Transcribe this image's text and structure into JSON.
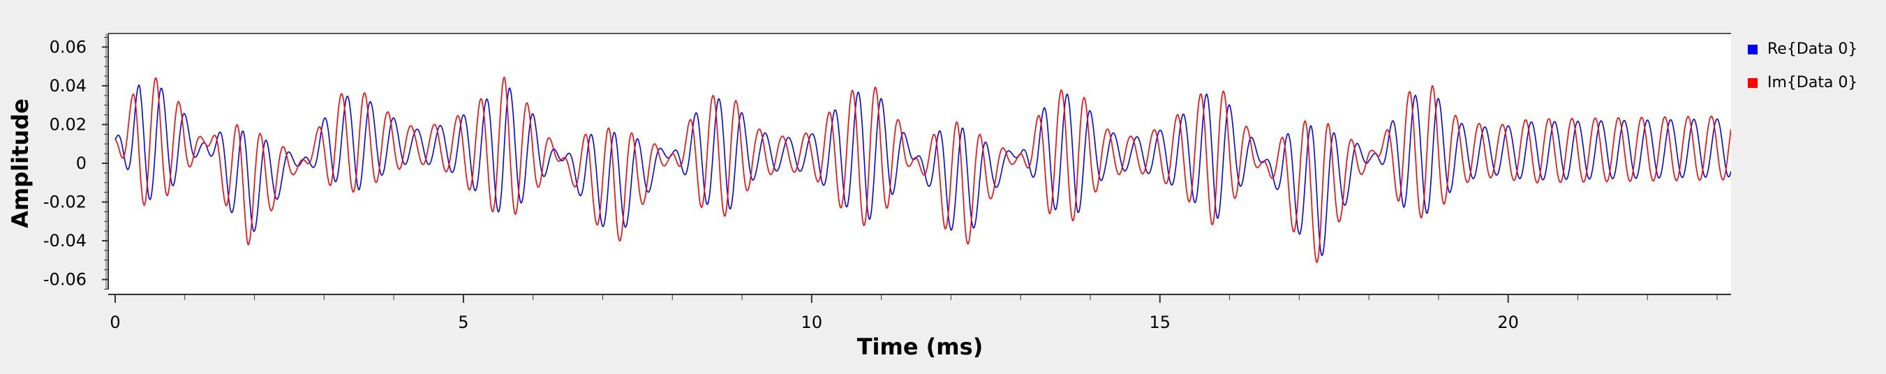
{
  "chart_data": {
    "type": "line",
    "xlabel": "Time (ms)",
    "ylabel": "Amplitude",
    "xlim": [
      -0.1,
      23.2
    ],
    "ylim": [
      -0.067,
      0.067
    ],
    "x_ticks": [
      0,
      5,
      10,
      15,
      20
    ],
    "x_tick_labels": [
      "0",
      "5",
      "10",
      "15",
      "20"
    ],
    "y_ticks": [
      0.06,
      0.04,
      0.02,
      0,
      -0.02,
      -0.04,
      -0.06
    ],
    "y_tick_labels": [
      "0.06",
      "0.04",
      "0.02",
      "0",
      "-0.02",
      "-0.04",
      "-0.06"
    ],
    "grid": false,
    "legend_position": "right",
    "carrier_freq_khz": 3.0,
    "series": [
      {
        "name": "Re{Data 0}",
        "color": "#0000ff",
        "envelope_points": [
          [
            0,
            0.0
          ],
          [
            0.35,
            0.03
          ],
          [
            0.6,
            0.03
          ],
          [
            0.9,
            0.02
          ],
          [
            1.3,
            0.0
          ],
          [
            1.6,
            -0.02
          ],
          [
            1.9,
            -0.028
          ],
          [
            2.3,
            -0.015
          ],
          [
            2.7,
            0.0
          ],
          [
            3.1,
            0.02
          ],
          [
            3.5,
            0.025
          ],
          [
            3.9,
            0.015
          ],
          [
            4.3,
            0.008
          ],
          [
            4.8,
            0.012
          ],
          [
            5.3,
            0.025
          ],
          [
            5.6,
            0.035
          ],
          [
            6.0,
            0.02
          ],
          [
            6.4,
            0.0
          ],
          [
            6.8,
            -0.02
          ],
          [
            7.2,
            -0.028
          ],
          [
            7.6,
            -0.015
          ],
          [
            8.0,
            0.0
          ],
          [
            8.4,
            0.025
          ],
          [
            8.8,
            0.03
          ],
          [
            9.2,
            0.012
          ],
          [
            9.6,
            0.008
          ],
          [
            10.0,
            0.01
          ],
          [
            10.4,
            0.025
          ],
          [
            10.8,
            0.035
          ],
          [
            11.1,
            0.025
          ],
          [
            11.5,
            0.0
          ],
          [
            11.9,
            -0.025
          ],
          [
            12.2,
            -0.03
          ],
          [
            12.6,
            -0.012
          ],
          [
            13.0,
            0.0
          ],
          [
            13.4,
            0.028
          ],
          [
            13.8,
            0.032
          ],
          [
            14.2,
            0.012
          ],
          [
            14.6,
            0.008
          ],
          [
            15.0,
            0.012
          ],
          [
            15.4,
            0.022
          ],
          [
            15.8,
            0.035
          ],
          [
            16.1,
            0.02
          ],
          [
            16.5,
            0.0
          ],
          [
            16.9,
            -0.025
          ],
          [
            17.3,
            -0.035
          ],
          [
            17.7,
            -0.015
          ],
          [
            18.1,
            0.0
          ],
          [
            18.5,
            0.028
          ],
          [
            18.9,
            0.032
          ],
          [
            19.3,
            0.015
          ],
          [
            19.8,
            0.012
          ],
          [
            20.3,
            0.015
          ],
          [
            21.0,
            0.015
          ],
          [
            22.0,
            0.015
          ],
          [
            23.2,
            0.015
          ]
        ],
        "offset_points": [
          [
            0,
            0.012
          ],
          [
            1.3,
            0.01
          ],
          [
            1.9,
            -0.012
          ],
          [
            2.6,
            0.0
          ],
          [
            3.2,
            0.012
          ],
          [
            6.2,
            0.005
          ],
          [
            7.2,
            -0.012
          ],
          [
            8.0,
            0.005
          ],
          [
            11.4,
            0.005
          ],
          [
            12.2,
            -0.012
          ],
          [
            13.0,
            0.005
          ],
          [
            16.3,
            0.005
          ],
          [
            17.3,
            -0.015
          ],
          [
            18.0,
            0.005
          ],
          [
            23.2,
            0.008
          ]
        ]
      },
      {
        "name": "Im{Data 0}",
        "color": "#ff0000",
        "envelope_points": [
          [
            0,
            0.0
          ],
          [
            0.35,
            0.03
          ],
          [
            0.6,
            0.03
          ],
          [
            0.9,
            0.02
          ],
          [
            1.3,
            0.0
          ],
          [
            1.6,
            -0.02
          ],
          [
            1.9,
            -0.028
          ],
          [
            2.3,
            -0.015
          ],
          [
            2.7,
            0.0
          ],
          [
            3.1,
            0.02
          ],
          [
            3.5,
            0.025
          ],
          [
            3.9,
            0.015
          ],
          [
            4.3,
            0.008
          ],
          [
            4.8,
            0.012
          ],
          [
            5.3,
            0.025
          ],
          [
            5.6,
            0.035
          ],
          [
            6.0,
            0.02
          ],
          [
            6.4,
            0.0
          ],
          [
            6.8,
            -0.02
          ],
          [
            7.2,
            -0.028
          ],
          [
            7.6,
            -0.015
          ],
          [
            8.0,
            0.0
          ],
          [
            8.4,
            0.025
          ],
          [
            8.8,
            0.03
          ],
          [
            9.2,
            0.012
          ],
          [
            9.6,
            0.008
          ],
          [
            10.0,
            0.01
          ],
          [
            10.4,
            0.025
          ],
          [
            10.8,
            0.035
          ],
          [
            11.1,
            0.025
          ],
          [
            11.5,
            0.0
          ],
          [
            11.9,
            -0.025
          ],
          [
            12.2,
            -0.03
          ],
          [
            12.6,
            -0.012
          ],
          [
            13.0,
            0.0
          ],
          [
            13.4,
            0.028
          ],
          [
            13.8,
            0.032
          ],
          [
            14.2,
            0.012
          ],
          [
            14.6,
            0.008
          ],
          [
            15.0,
            0.012
          ],
          [
            15.4,
            0.022
          ],
          [
            15.8,
            0.035
          ],
          [
            16.1,
            0.02
          ],
          [
            16.5,
            0.0
          ],
          [
            16.9,
            -0.025
          ],
          [
            17.3,
            -0.035
          ],
          [
            17.7,
            -0.015
          ],
          [
            18.1,
            0.0
          ],
          [
            18.5,
            0.028
          ],
          [
            18.9,
            0.032
          ],
          [
            19.3,
            0.015
          ],
          [
            19.8,
            0.012
          ],
          [
            20.3,
            0.015
          ],
          [
            21.0,
            0.015
          ],
          [
            22.0,
            0.015
          ],
          [
            23.2,
            0.015
          ]
        ],
        "offset_points": [
          [
            0,
            0.012
          ],
          [
            1.3,
            0.01
          ],
          [
            1.9,
            -0.012
          ],
          [
            2.6,
            0.0
          ],
          [
            3.2,
            0.012
          ],
          [
            6.2,
            0.005
          ],
          [
            7.2,
            -0.012
          ],
          [
            8.0,
            0.005
          ],
          [
            11.4,
            0.005
          ],
          [
            12.2,
            -0.012
          ],
          [
            13.0,
            0.005
          ],
          [
            16.3,
            0.005
          ],
          [
            17.3,
            -0.015
          ],
          [
            18.0,
            0.005
          ],
          [
            23.2,
            0.008
          ]
        ]
      }
    ]
  }
}
